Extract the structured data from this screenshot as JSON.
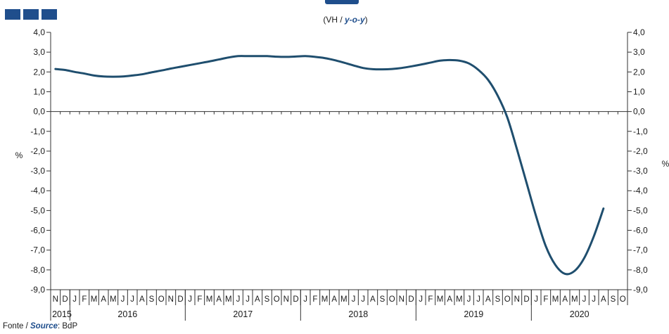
{
  "header": {
    "subtitle_prefix": "(VH / ",
    "subtitle_accent": "y-o-y",
    "subtitle_suffix": ")"
  },
  "footer": {
    "source_prefix": "Fonte / ",
    "source_accent": "Source",
    "source_suffix": ": BdP"
  },
  "colors": {
    "line": "#1f4e6e",
    "accent": "#1f4e8c"
  },
  "chart_data": {
    "type": "line",
    "ylabel_left": "%",
    "ylabel_right": "%",
    "ylim": [
      -9.0,
      4.0
    ],
    "yticks": [
      "4,0",
      "3,0",
      "2,0",
      "1,0",
      "0,0",
      "-1,0",
      "-2,0",
      "-3,0",
      "-4,0",
      "-5,0",
      "-6,0",
      "-7,0",
      "-8,0",
      "-9,0"
    ],
    "month_labels": [
      "N",
      "D",
      "J",
      "F",
      "M",
      "A",
      "M",
      "J",
      "J",
      "A",
      "S",
      "O",
      "N",
      "D",
      "J",
      "F",
      "M",
      "A",
      "M",
      "J",
      "J",
      "A",
      "S",
      "O",
      "N",
      "D",
      "J",
      "F",
      "M",
      "A",
      "M",
      "J",
      "J",
      "A",
      "S",
      "O",
      "N",
      "D",
      "J",
      "F",
      "M",
      "A",
      "M",
      "J",
      "J",
      "A",
      "S",
      "O",
      "N",
      "D",
      "J",
      "F",
      "M",
      "A",
      "M",
      "J",
      "J",
      "A",
      "S",
      "O"
    ],
    "years": [
      {
        "label": "2015",
        "start": 0,
        "end": 2
      },
      {
        "label": "2016",
        "start": 2,
        "end": 14
      },
      {
        "label": "2017",
        "start": 14,
        "end": 26
      },
      {
        "label": "2018",
        "start": 26,
        "end": 38
      },
      {
        "label": "2019",
        "start": 38,
        "end": 50
      },
      {
        "label": "2020",
        "start": 50,
        "end": 60
      }
    ],
    "series": [
      {
        "values": [
          2.15,
          2.1,
          2.0,
          1.92,
          1.82,
          1.77,
          1.76,
          1.77,
          1.82,
          1.88,
          1.98,
          2.07,
          2.17,
          2.26,
          2.35,
          2.44,
          2.53,
          2.63,
          2.73,
          2.8,
          2.8,
          2.8,
          2.8,
          2.77,
          2.76,
          2.78,
          2.8,
          2.76,
          2.7,
          2.6,
          2.47,
          2.33,
          2.2,
          2.14,
          2.13,
          2.15,
          2.2,
          2.28,
          2.37,
          2.47,
          2.57,
          2.6,
          2.57,
          2.43,
          2.1,
          1.6,
          0.8,
          -0.3,
          -1.9,
          -3.6,
          -5.3,
          -6.8,
          -7.75,
          -8.2,
          -8.05,
          -7.4,
          -6.3,
          -4.9
        ]
      }
    ]
  }
}
